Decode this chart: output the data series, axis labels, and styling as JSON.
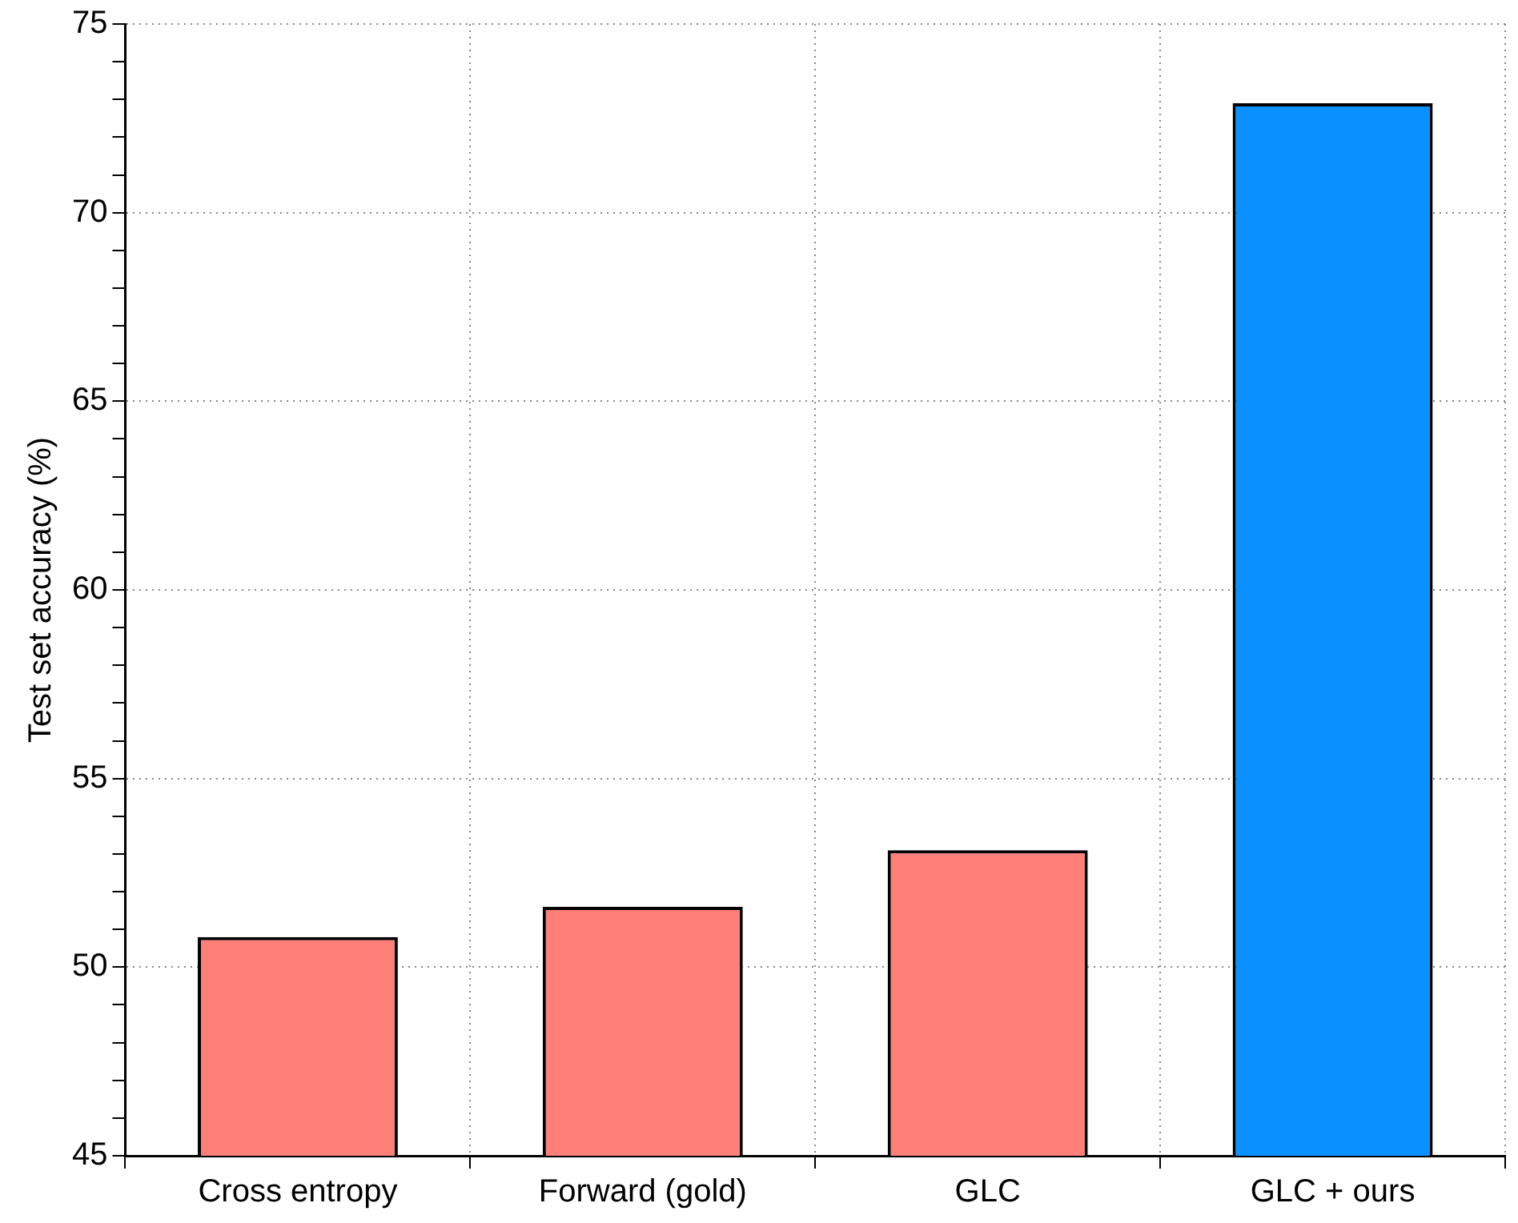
{
  "chart_data": {
    "type": "bar",
    "ylabel": "Test set accuracy (%)",
    "categories": [
      "Cross entropy",
      "Forward (gold)",
      "GLC",
      "GLC + ours"
    ],
    "values": [
      50.8,
      51.6,
      53.1,
      72.9
    ],
    "colors": [
      "#ff7f79",
      "#ff7f79",
      "#ff7f79",
      "#0a90ff"
    ],
    "ylim": [
      45,
      75
    ],
    "yticks": [
      45,
      {
        "value": 46,
        "label": null
      },
      {
        "value": 47,
        "label": null
      },
      {
        "value": 48,
        "label": null
      },
      {
        "value": 49,
        "label": null
      },
      50,
      {
        "value": 51,
        "label": null
      },
      {
        "value": 52,
        "label": null
      },
      {
        "value": 53,
        "label": null
      },
      {
        "value": 54,
        "label": null
      },
      55,
      {
        "value": 56,
        "label": null
      },
      {
        "value": 57,
        "label": null
      },
      {
        "value": 58,
        "label": null
      },
      {
        "value": 59,
        "label": null
      },
      60,
      {
        "value": 61,
        "label": null
      },
      {
        "value": 62,
        "label": null
      },
      {
        "value": 63,
        "label": null
      },
      {
        "value": 64,
        "label": null
      },
      65,
      {
        "value": 66,
        "label": null
      },
      {
        "value": 67,
        "label": null
      },
      {
        "value": 68,
        "label": null
      },
      {
        "value": 69,
        "label": null
      },
      70,
      {
        "value": 71,
        "label": null
      },
      {
        "value": 72,
        "label": null
      },
      {
        "value": 73,
        "label": null
      },
      {
        "value": 74,
        "label": null
      },
      75
    ],
    "grid": true
  }
}
